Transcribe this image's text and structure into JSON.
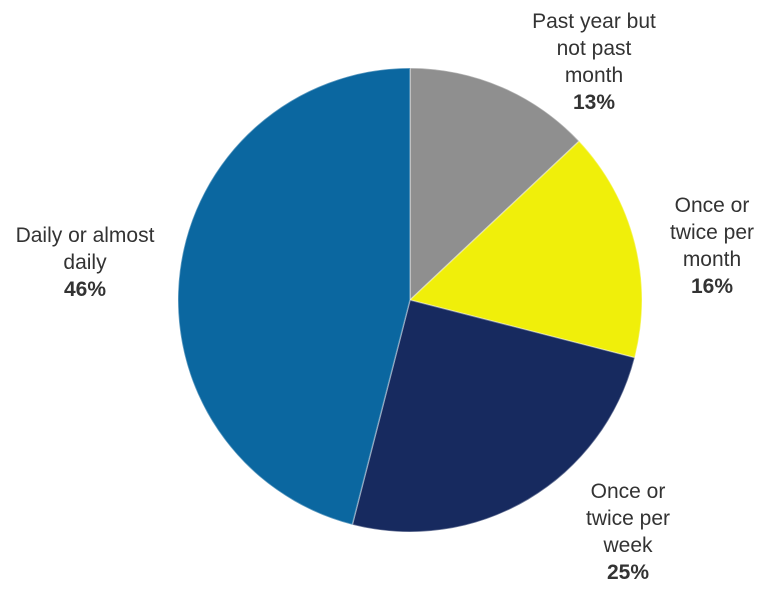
{
  "chart_data": {
    "type": "pie",
    "categories": [
      "Past year but not past month",
      "Once or twice per month",
      "Once or twice per week",
      "Daily or almost daily"
    ],
    "values": [
      13,
      16,
      25,
      46
    ],
    "value_labels": [
      "13%",
      "16%",
      "25%",
      "46%"
    ],
    "colors": [
      "#8f8f8f",
      "#f0ef0a",
      "#172a5f",
      "#0b67a0"
    ]
  }
}
